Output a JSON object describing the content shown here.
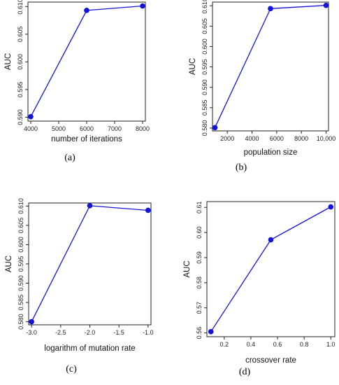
{
  "chart_data": [
    {
      "type": "line",
      "caption": "(a)",
      "xlabel": "number of iterations",
      "ylabel": "AUC",
      "x": [
        4000,
        6000,
        8000
      ],
      "y": [
        0.5901,
        0.6093,
        0.6101
      ],
      "xlim": [
        3900,
        8100
      ],
      "ylim": [
        0.5893,
        0.6108
      ],
      "xticks": [
        4000,
        5000,
        6000,
        7000,
        8000
      ],
      "xtick_labels": [
        "4000",
        "5000",
        "6000",
        "7000",
        "8000"
      ],
      "yticks": [
        0.59,
        0.595,
        0.6,
        0.605,
        0.61
      ],
      "ytick_labels": [
        "0.590",
        "0.595",
        "0.600",
        "0.605",
        "0.610"
      ],
      "color": "#1414d8",
      "grid": false
    },
    {
      "type": "line",
      "caption": "(b)",
      "xlabel": "population size",
      "ylabel": "AUC",
      "x": [
        1000,
        5500,
        10000
      ],
      "y": [
        0.5801,
        0.6093,
        0.6101
      ],
      "xlim": [
        800,
        10200
      ],
      "ylim": [
        0.5793,
        0.6109
      ],
      "xticks": [
        2000,
        4000,
        6000,
        8000,
        10000
      ],
      "xtick_labels": [
        "2000",
        "4000",
        "6000",
        "8000",
        "10,000"
      ],
      "yticks": [
        0.58,
        0.585,
        0.59,
        0.595,
        0.6,
        0.605,
        0.61
      ],
      "ytick_labels": [
        "0.580",
        "0.585",
        "0.590",
        "0.595",
        "0.600",
        "0.605",
        "0.610"
      ],
      "color": "#1414d8",
      "grid": false
    },
    {
      "type": "line",
      "caption": "(c)",
      "xlabel": "logarithm of mutation rate",
      "ylabel": "AUC",
      "x": [
        -3.0,
        -2.0,
        -1.0
      ],
      "y": [
        0.58,
        0.6101,
        0.6089
      ],
      "xlim": [
        -3.05,
        -0.95
      ],
      "ylim": [
        0.5792,
        0.6108
      ],
      "xticks": [
        -3.0,
        -2.5,
        -2.0,
        -1.5,
        -1.0
      ],
      "xtick_labels": [
        "-3.0",
        "-2.5",
        "-2.0",
        "-1.5",
        "-1.0"
      ],
      "yticks": [
        0.58,
        0.585,
        0.59,
        0.595,
        0.6,
        0.605,
        0.61
      ],
      "ytick_labels": [
        "0.580",
        "0.585",
        "0.590",
        "0.595",
        "0.600",
        "0.605",
        "0.610"
      ],
      "color": "#1414d8",
      "grid": false
    },
    {
      "type": "line",
      "caption": "(d)",
      "xlabel": "crossover rate",
      "ylabel": "AUC",
      "x": [
        0.1,
        0.55,
        1.0
      ],
      "y": [
        0.5605,
        0.5971,
        0.6102
      ],
      "xlim": [
        0.07,
        1.03
      ],
      "ylim": [
        0.5585,
        0.6123
      ],
      "xticks": [
        0.2,
        0.4,
        0.6,
        0.8,
        1.0
      ],
      "xtick_labels": [
        "0.2",
        "0.4",
        "0.6",
        "0.8",
        "1.0"
      ],
      "yticks": [
        0.56,
        0.57,
        0.58,
        0.59,
        0.6,
        0.61
      ],
      "ytick_labels": [
        "0.56",
        "0.57",
        "0.58",
        "0.59",
        "0.60",
        "0.61"
      ],
      "color": "#1414d8",
      "grid": false
    }
  ]
}
